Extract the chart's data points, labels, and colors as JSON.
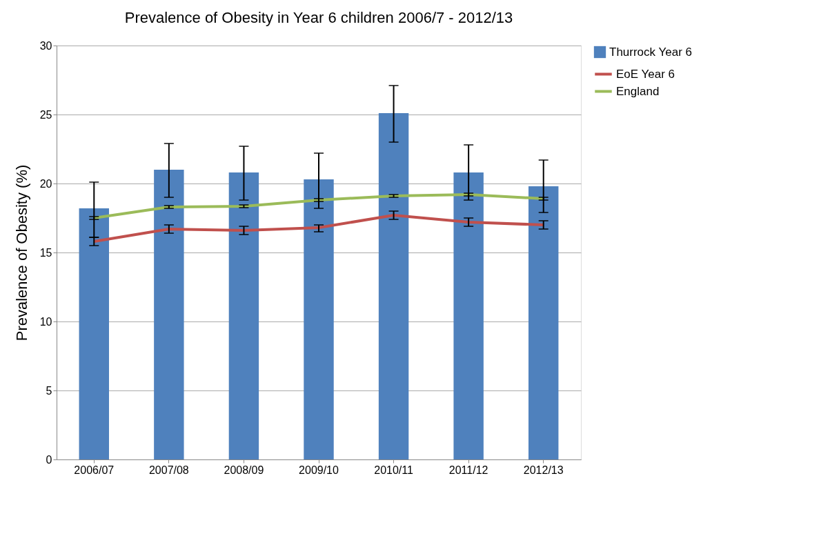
{
  "chart_data": {
    "type": "bar",
    "title": "Prevalence of Obesity in Year 6 children 2006/7 - 2012/13",
    "ylabel": "Prevalence of Obesity (%)",
    "categories": [
      "2006/07",
      "2007/08",
      "2008/09",
      "2009/10",
      "2010/11",
      "2011/12",
      "2012/13"
    ],
    "series": [
      {
        "name": "Thurrock Year 6",
        "color": "#4f81bd",
        "values": [
          18.2,
          21.0,
          20.8,
          20.3,
          25.1,
          20.8,
          19.8
        ],
        "errors": [
          [
            16.1,
            20.1
          ],
          [
            19.0,
            22.9
          ],
          [
            18.8,
            22.7
          ],
          [
            18.2,
            22.2
          ],
          [
            23.0,
            27.1
          ],
          [
            18.8,
            22.8
          ],
          [
            17.9,
            21.7
          ]
        ]
      },
      {
        "name": "EoE Year 6",
        "type": "line",
        "color": "#c0504d",
        "values": [
          15.8,
          16.7,
          16.6,
          16.8,
          17.7,
          17.2,
          17.0
        ],
        "errors": [
          [
            15.5,
            16.1
          ],
          [
            16.4,
            17.0
          ],
          [
            16.3,
            16.9
          ],
          [
            16.5,
            17.0
          ],
          [
            17.4,
            18.0
          ],
          [
            16.9,
            17.5
          ],
          [
            16.7,
            17.3
          ]
        ]
      },
      {
        "name": "England",
        "type": "line",
        "color": "#9bbb59",
        "values": [
          17.5,
          18.3,
          18.35,
          18.8,
          19.1,
          19.2,
          18.9
        ],
        "errors": [
          0.1,
          0.1,
          0.1,
          0.1,
          0.1,
          0.1,
          0.1
        ]
      }
    ],
    "ylim": [
      0,
      30
    ],
    "yticks": [
      0,
      5,
      10,
      15,
      20,
      25,
      30
    ],
    "grid": "y",
    "legend": "right"
  }
}
